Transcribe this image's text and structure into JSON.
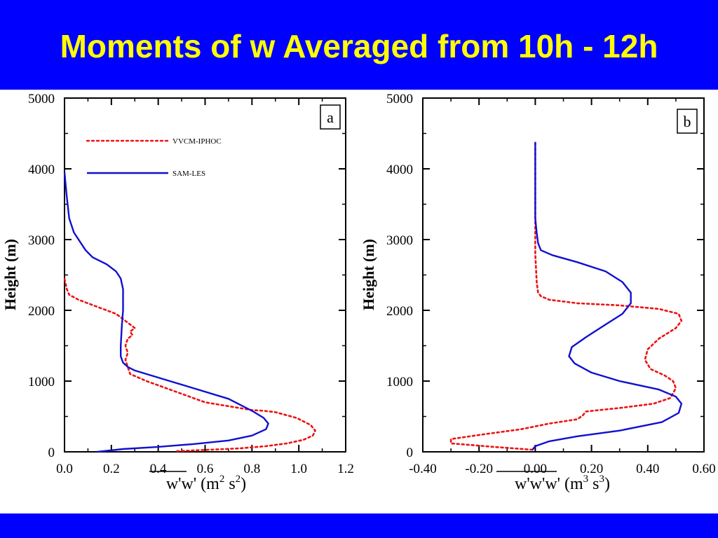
{
  "slide": {
    "title": "Moments of w Averaged from 10h - 12h",
    "colors": {
      "band": "#0000ff",
      "title": "#ffff00",
      "les": "#1010d0",
      "iphoc": "#ee1111"
    }
  },
  "chart_data": [
    {
      "type": "line",
      "panel_label": "a",
      "ylabel": "Height (m)",
      "xlabel": "w'w'",
      "xlabel_units": [
        "(m",
        "2",
        " s",
        "2",
        ")"
      ],
      "xlim": [
        0.0,
        1.2
      ],
      "ylim": [
        0,
        5000
      ],
      "xticks": [
        "0.0",
        "0.2",
        "0.4",
        "0.6",
        "0.8",
        "1.0",
        "1.2"
      ],
      "yticks": [
        "0",
        "1000",
        "2000",
        "3000",
        "4000",
        "5000"
      ],
      "legend_position": "top-left",
      "series": [
        {
          "name": "VVCM-IPHOC",
          "style": "dotted",
          "color": "#ee1111",
          "x": [
            0.48,
            0.62,
            0.75,
            0.86,
            0.95,
            1.02,
            1.06,
            1.07,
            1.05,
            0.99,
            0.9,
            0.85,
            0.8,
            0.6,
            0.35,
            0.28,
            0.27,
            0.26,
            0.27,
            0.26,
            0.27,
            0.29,
            0.28,
            0.3,
            0.28,
            0.26,
            0.22,
            0.14,
            0.06,
            0.02,
            0.01,
            0.0
          ],
          "y": [
            10,
            30,
            50,
            80,
            120,
            170,
            230,
            300,
            380,
            480,
            560,
            580,
            590,
            700,
            1000,
            1100,
            1200,
            1300,
            1400,
            1500,
            1600,
            1650,
            1700,
            1750,
            1800,
            1850,
            1950,
            2050,
            2150,
            2220,
            2300,
            2450
          ]
        },
        {
          "name": "SAM-LES",
          "style": "solid",
          "color": "#1010d0",
          "x": [
            0.14,
            0.25,
            0.4,
            0.55,
            0.7,
            0.8,
            0.86,
            0.87,
            0.85,
            0.8,
            0.7,
            0.55,
            0.4,
            0.3,
            0.27,
            0.25,
            0.24,
            0.24,
            0.245,
            0.25,
            0.25,
            0.25,
            0.24,
            0.22,
            0.18,
            0.12,
            0.09,
            0.07,
            0.05,
            0.04,
            0.02,
            0.01,
            0.0
          ],
          "y": [
            0,
            40,
            70,
            110,
            160,
            230,
            320,
            400,
            480,
            580,
            750,
            900,
            1050,
            1150,
            1200,
            1260,
            1350,
            1500,
            1800,
            2000,
            2150,
            2300,
            2450,
            2550,
            2650,
            2750,
            2850,
            2950,
            3050,
            3100,
            3300,
            3600,
            3950
          ]
        }
      ]
    },
    {
      "type": "line",
      "panel_label": "b",
      "ylabel": "Height (m)",
      "xlabel": "w'w'w'",
      "xlabel_units": [
        "(m",
        "3",
        " s",
        "3",
        ")"
      ],
      "xlim": [
        -0.4,
        0.6
      ],
      "ylim": [
        0,
        5000
      ],
      "xticks": [
        "-0.40",
        "-0.20",
        "0.00",
        "0.20",
        "0.40",
        "0.60"
      ],
      "yticks": [
        "0",
        "1000",
        "2000",
        "3000",
        "4000",
        "5000"
      ],
      "series": [
        {
          "name": "VVCM-IPHOC",
          "style": "dotted",
          "color": "#ee1111",
          "x": [
            -0.01,
            -0.15,
            -0.3,
            -0.3,
            -0.18,
            -0.05,
            0.05,
            0.15,
            0.17,
            0.18,
            0.3,
            0.42,
            0.48,
            0.5,
            0.49,
            0.46,
            0.41,
            0.39,
            0.4,
            0.44,
            0.5,
            0.52,
            0.51,
            0.44,
            0.3,
            0.15,
            0.05,
            0.02,
            0.01,
            0.005,
            0.0,
            0.0,
            0.0
          ],
          "y": [
            30,
            70,
            120,
            180,
            250,
            320,
            400,
            460,
            520,
            570,
            620,
            680,
            760,
            900,
            1000,
            1080,
            1170,
            1300,
            1450,
            1600,
            1750,
            1850,
            1950,
            2020,
            2070,
            2100,
            2150,
            2200,
            2250,
            2400,
            2800,
            3200,
            4380
          ]
        },
        {
          "name": "SAM-LES",
          "style": "solid",
          "color": "#1010d0",
          "x": [
            -0.01,
            0.0,
            0.05,
            0.15,
            0.3,
            0.45,
            0.51,
            0.52,
            0.5,
            0.44,
            0.3,
            0.2,
            0.14,
            0.12,
            0.13,
            0.18,
            0.25,
            0.31,
            0.34,
            0.34,
            0.31,
            0.25,
            0.15,
            0.06,
            0.02,
            0.01,
            0.005,
            0.0,
            0.0
          ],
          "y": [
            30,
            80,
            150,
            220,
            300,
            420,
            550,
            680,
            780,
            880,
            1000,
            1120,
            1250,
            1350,
            1480,
            1620,
            1800,
            1950,
            2100,
            2250,
            2400,
            2550,
            2680,
            2780,
            2850,
            2950,
            3100,
            3300,
            4380
          ]
        }
      ]
    }
  ]
}
